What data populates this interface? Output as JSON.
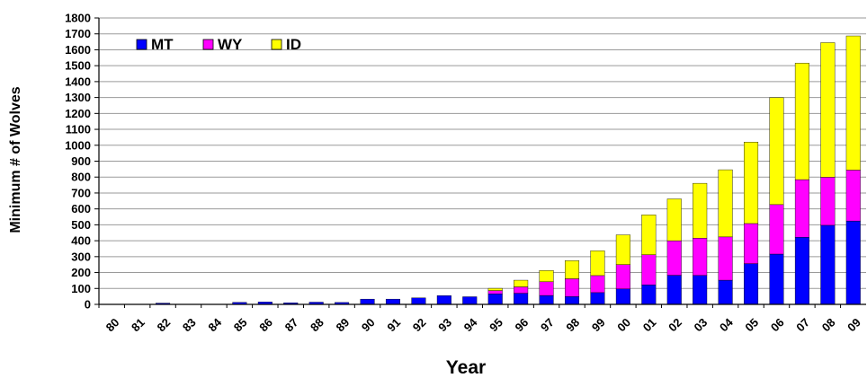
{
  "chart_data": {
    "type": "bar",
    "stacked": true,
    "title": "",
    "xlabel": "Year",
    "ylabel": "Minimum # of Wolves",
    "ylim": [
      0,
      1800
    ],
    "yticks": [
      0,
      100,
      200,
      300,
      400,
      500,
      600,
      700,
      800,
      900,
      1000,
      1100,
      1200,
      1300,
      1400,
      1500,
      1600,
      1700,
      1800
    ],
    "grid": true,
    "legend": "top-left",
    "categories": [
      "80",
      "81",
      "82",
      "83",
      "84",
      "85",
      "86",
      "87",
      "88",
      "89",
      "90",
      "91",
      "92",
      "93",
      "94",
      "95",
      "96",
      "97",
      "98",
      "99",
      "00",
      "01",
      "02",
      "03",
      "04",
      "05",
      "06",
      "07",
      "08",
      "09"
    ],
    "series": [
      {
        "name": "MT",
        "color": "#0000ff",
        "values": [
          0,
          0,
          8,
          0,
          0,
          13,
          15,
          10,
          14,
          12,
          33,
          33,
          41,
          55,
          48,
          66,
          70,
          56,
          49,
          74,
          97,
          123,
          183,
          182,
          152,
          256,
          316,
          422,
          497,
          524
        ]
      },
      {
        "name": "WY",
        "color": "#ff00ff",
        "values": [
          0,
          0,
          0,
          0,
          0,
          0,
          0,
          0,
          0,
          0,
          0,
          0,
          0,
          0,
          0,
          21,
          40,
          86,
          112,
          107,
          153,
          189,
          217,
          234,
          272,
          252,
          311,
          362,
          302,
          320
        ]
      },
      {
        "name": "ID",
        "color": "#ffff00",
        "values": [
          0,
          0,
          0,
          0,
          0,
          0,
          0,
          0,
          0,
          0,
          0,
          0,
          0,
          0,
          0,
          14,
          42,
          71,
          114,
          156,
          187,
          251,
          263,
          345,
          422,
          512,
          673,
          732,
          846,
          843
        ]
      }
    ]
  }
}
